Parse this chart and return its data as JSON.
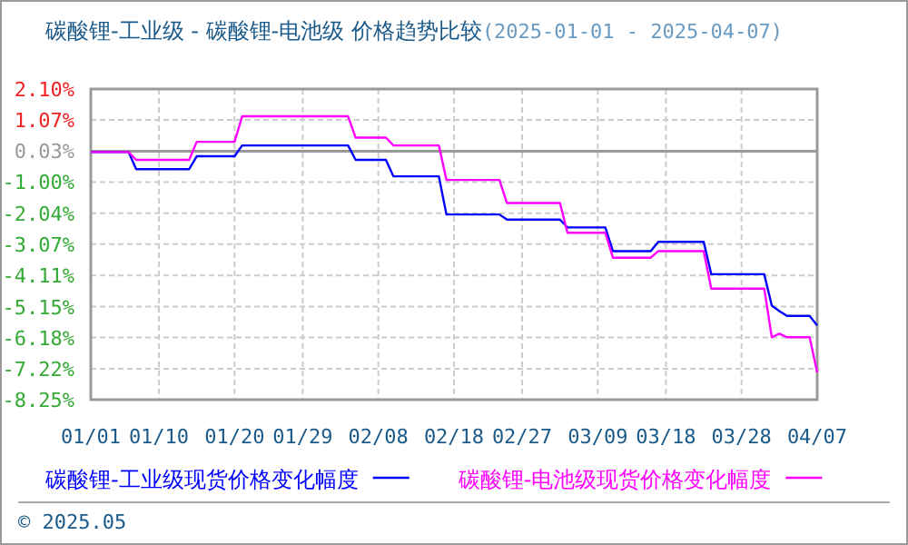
{
  "chart_data": {
    "type": "line",
    "title": "碳酸锂-工业级 - 碳酸锂-电池级 价格趋势比较",
    "subtitle": "(2025-01-01 - 2025-04-07)",
    "annotations": [
      "© 2025.05"
    ],
    "x": [
      "2025-01-01",
      "2025-01-06",
      "2025-01-07",
      "2025-01-14",
      "2025-01-15",
      "2025-01-20",
      "2025-01-21",
      "2025-02-04",
      "2025-02-05",
      "2025-02-09",
      "2025-02-10",
      "2025-02-16",
      "2025-02-17",
      "2025-02-24",
      "2025-02-25",
      "2025-03-04",
      "2025-03-05",
      "2025-03-10",
      "2025-03-11",
      "2025-03-16",
      "2025-03-17",
      "2025-03-23",
      "2025-03-24",
      "2025-03-31",
      "2025-04-01",
      "2025-04-02",
      "2025-04-03",
      "2025-04-06",
      "2025-04-07"
    ],
    "series": [
      {
        "name": "碳酸锂-工业级现货价格变化幅度",
        "color": "#0000ff",
        "values": [
          0,
          0,
          -0.57,
          -0.57,
          -0.14,
          -0.14,
          0.22,
          0.22,
          -0.26,
          -0.26,
          -0.81,
          -0.81,
          -2.08,
          -2.08,
          -2.25,
          -2.25,
          -2.51,
          -2.51,
          -3.3,
          -3.3,
          -2.99,
          -2.99,
          -4.07,
          -4.07,
          -5.12,
          -5.3,
          -5.46,
          -5.46,
          -5.78
        ]
      },
      {
        "name": "碳酸锂-电池级现货价格变化幅度",
        "color": "#ff00ff",
        "values": [
          0,
          0,
          -0.26,
          -0.26,
          0.34,
          0.34,
          1.19,
          1.19,
          0.48,
          0.48,
          0.22,
          0.22,
          -0.93,
          -0.93,
          -1.7,
          -1.7,
          -2.69,
          -2.69,
          -3.52,
          -3.52,
          -3.3,
          -3.3,
          -4.55,
          -4.55,
          -6.17,
          -6.05,
          -6.17,
          -6.17,
          -7.34
        ]
      }
    ],
    "xlim": [
      "2025-01-01",
      "2025-04-07"
    ],
    "xticks": [
      {
        "value": "2025-01-01",
        "label": "01/01"
      },
      {
        "value": "2025-01-10",
        "label": "01/10"
      },
      {
        "value": "2025-01-20",
        "label": "01/20"
      },
      {
        "value": "2025-01-29",
        "label": "01/29"
      },
      {
        "value": "2025-02-08",
        "label": "02/08"
      },
      {
        "value": "2025-02-18",
        "label": "02/18"
      },
      {
        "value": "2025-02-27",
        "label": "02/27"
      },
      {
        "value": "2025-03-09",
        "label": "03/09"
      },
      {
        "value": "2025-03-18",
        "label": "03/18"
      },
      {
        "value": "2025-03-28",
        "label": "03/28"
      },
      {
        "value": "2025-04-07",
        "label": "04/07"
      }
    ],
    "ylim": [
      -8.25,
      2.1
    ],
    "yticks": [
      {
        "value": 2.1,
        "label": "2.10%"
      },
      {
        "value": 1.07,
        "label": "1.07%"
      },
      {
        "value": 0.03,
        "label": "0.03%"
      },
      {
        "value": -1,
        "label": "-1.00%"
      },
      {
        "value": -2.04,
        "label": "-2.04%"
      },
      {
        "value": -3.07,
        "label": "-3.07%"
      },
      {
        "value": -4.11,
        "label": "-4.11%"
      },
      {
        "value": -5.15,
        "label": "-5.15%"
      },
      {
        "value": -6.18,
        "label": "-6.18%"
      },
      {
        "value": -7.22,
        "label": "-7.22%"
      },
      {
        "value": -8.25,
        "label": "-8.25%"
      }
    ],
    "ref_lines": [
      {
        "axis": "y",
        "value": 0.03,
        "color": "#999999"
      }
    ],
    "grid": true,
    "legend": "bottom",
    "line_style": "solid",
    "marker": "none"
  }
}
